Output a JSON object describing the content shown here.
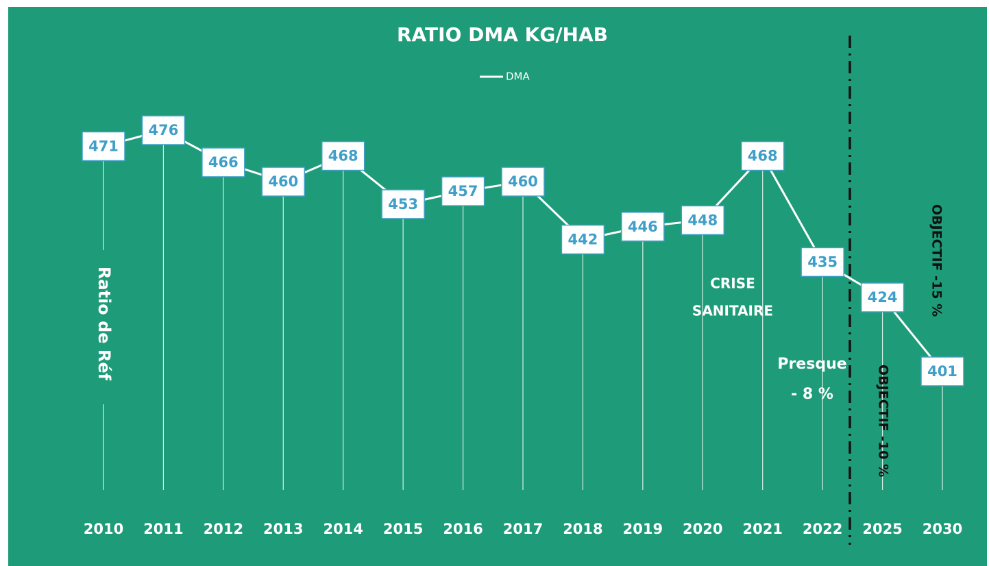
{
  "chart_data": {
    "type": "line",
    "title": "RATIO DMA KG/HAB",
    "categories": [
      "2010",
      "2011",
      "2012",
      "2013",
      "2014",
      "2015",
      "2016",
      "2017",
      "2018",
      "2019",
      "2020",
      "2021",
      "2022",
      "2025",
      "2030"
    ],
    "series": [
      {
        "name": "DMA",
        "color": "#ffffff",
        "values": [
          471,
          476,
          466,
          460,
          468,
          453,
          457,
          460,
          442,
          446,
          448,
          468,
          435,
          424,
          401
        ]
      }
    ],
    "annotations": [
      {
        "lines": [
          "Ratio de Réf"
        ]
      },
      {
        "lines": [
          "CRISE",
          "SANITAIRE"
        ]
      },
      {
        "lines": [
          "Presque",
          "- 8 %"
        ]
      },
      {
        "lines": [
          "OBJECTIF -10 %"
        ]
      },
      {
        "lines": [
          "OBJECTIF -15 %"
        ]
      }
    ]
  }
}
